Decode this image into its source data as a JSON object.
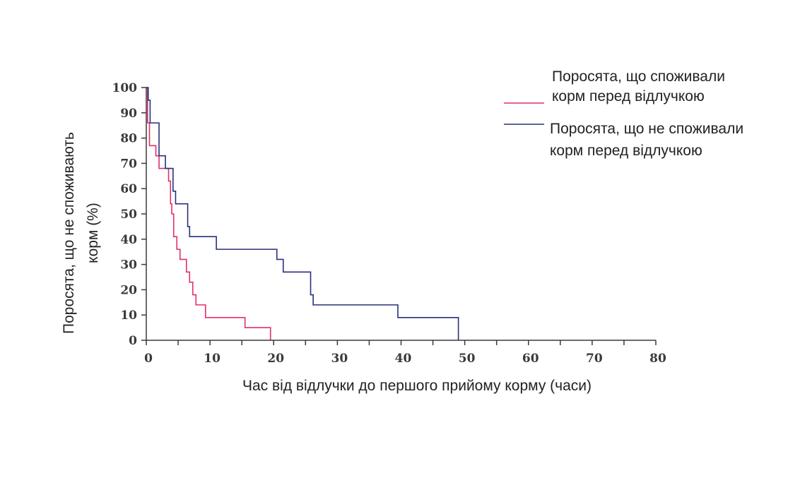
{
  "chart_data": {
    "type": "line",
    "step": true,
    "xlabel": "Час від відлучки до першого прийому корму (часи)",
    "ylabel_lines": [
      "Поросята, що не споживають",
      "корм (%)"
    ],
    "xlim": [
      0,
      80
    ],
    "ylim": [
      0,
      100
    ],
    "xticks": [
      "0",
      "10",
      "20",
      "30",
      "40",
      "50",
      "60",
      "70",
      "80"
    ],
    "yticks": [
      "0",
      "10",
      "20",
      "30",
      "40",
      "50",
      "60",
      "70",
      "80",
      "90",
      "100"
    ],
    "grid": false,
    "legend_position": "top-right",
    "series": [
      {
        "name_lines": [
          "Поросята, що споживали",
          "корм перед відлучкою"
        ],
        "color": "#e0306a",
        "x": [
          0,
          0.2,
          0.5,
          1.5,
          2,
          3.5,
          3.8,
          4,
          4.3,
          4.8,
          5.3,
          6.3,
          6.8,
          7.3,
          7.8,
          9.3,
          15.5,
          19.5,
          19.5
        ],
        "y": [
          100,
          86,
          77,
          73,
          68,
          63,
          54,
          50,
          41,
          36,
          32,
          27,
          23,
          18,
          14,
          9,
          5,
          5,
          0
        ]
      },
      {
        "name_lines": [
          "Поросята, що не споживали",
          "корм перед відлучкою"
        ],
        "color": "#2a2f7a",
        "x": [
          0,
          0.3,
          0.6,
          2,
          3,
          4.2,
          4.6,
          6.5,
          6.8,
          11,
          20.5,
          21.5,
          25.8,
          26.2,
          39.5,
          49,
          49
        ],
        "y": [
          100,
          95,
          86,
          73,
          68,
          59,
          54,
          45,
          41,
          36,
          32,
          27,
          18,
          14,
          9,
          9,
          0
        ]
      }
    ]
  }
}
